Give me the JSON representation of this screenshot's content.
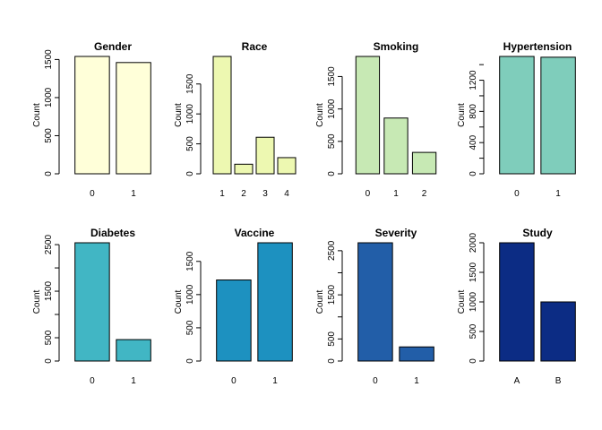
{
  "chart_data": [
    {
      "type": "bar",
      "title": "Gender",
      "ylabel": "Count",
      "categories": [
        "0",
        "1"
      ],
      "values": [
        1540,
        1460
      ],
      "ylim": [
        0,
        1540
      ],
      "yticks": [
        0,
        500,
        1000,
        1500
      ],
      "color": "#FFFFD9"
    },
    {
      "type": "bar",
      "title": "Race",
      "ylabel": "Count",
      "categories": [
        "1",
        "2",
        "3",
        "4"
      ],
      "values": [
        1960,
        160,
        610,
        270
      ],
      "ylim": [
        0,
        1960
      ],
      "yticks": [
        0,
        500,
        1000,
        1500
      ],
      "color": "#EDF8B1"
    },
    {
      "type": "bar",
      "title": "Smoking",
      "ylabel": "Count",
      "categories": [
        "0",
        "1",
        "2"
      ],
      "values": [
        1810,
        860,
        330
      ],
      "ylim": [
        0,
        1810
      ],
      "yticks": [
        0,
        500,
        1000,
        1500
      ],
      "color": "#C7E9B4"
    },
    {
      "type": "bar",
      "title": "Hypertension",
      "ylabel": "Count",
      "categories": [
        "0",
        "1"
      ],
      "values": [
        1505,
        1495
      ],
      "ylim": [
        0,
        1505
      ],
      "yticks": [
        0,
        400,
        800,
        1200
      ],
      "minor_yticks": [
        200,
        600,
        1000,
        1400
      ],
      "color": "#7FCDBB"
    },
    {
      "type": "bar",
      "title": "Diabetes",
      "ylabel": "Count",
      "categories": [
        "0",
        "1"
      ],
      "values": [
        2540,
        460
      ],
      "ylim": [
        0,
        2540
      ],
      "yticks": [
        0,
        500,
        1500,
        2500
      ],
      "minor_yticks": [
        1000,
        2000
      ],
      "color": "#41B6C4"
    },
    {
      "type": "bar",
      "title": "Vaccine",
      "ylabel": "Count",
      "categories": [
        "0",
        "1"
      ],
      "values": [
        1220,
        1780
      ],
      "ylim": [
        0,
        1780
      ],
      "yticks": [
        0,
        500,
        1000,
        1500
      ],
      "color": "#1D91C0"
    },
    {
      "type": "bar",
      "title": "Severity",
      "ylabel": "Count",
      "categories": [
        "0",
        "1"
      ],
      "values": [
        2680,
        320
      ],
      "ylim": [
        0,
        2680
      ],
      "yticks": [
        0,
        500,
        1500,
        2500
      ],
      "minor_yticks": [
        1000,
        2000
      ],
      "color": "#225EA8"
    },
    {
      "type": "bar",
      "title": "Study",
      "ylabel": "Count",
      "categories": [
        "A",
        "B"
      ],
      "values": [
        2000,
        1000
      ],
      "ylim": [
        0,
        2000
      ],
      "yticks": [
        0,
        500,
        1000,
        1500,
        2000
      ],
      "color": "#0C2C84"
    }
  ]
}
